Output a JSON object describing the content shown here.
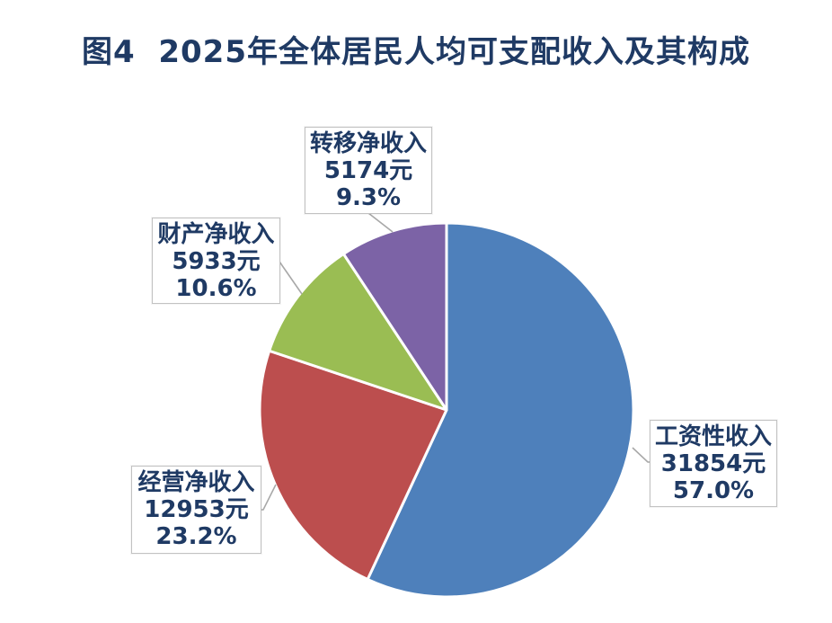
{
  "title": "图4  2025年全体居民人均可支配收入及其构成",
  "colors": {
    "background": "#FFFFFF",
    "title_text": "#1F3A64",
    "label_text": "#1F3A64",
    "callout_border": "#C2C2C2",
    "leader_line": "#A8A8A8",
    "slice_separator": "#FFFFFF"
  },
  "chart_data": {
    "type": "pie",
    "title": "图4  2025年全体居民人均可支配收入及其构成",
    "unit": "元",
    "start_angle": "12-o-clock",
    "direction": "clockwise",
    "legend_position": "none",
    "slices": [
      {
        "label": "工资性收入",
        "value": 31854,
        "value_text": "31854元",
        "percent": 57.0,
        "percent_text": "57.0%",
        "color": "#4E80BB"
      },
      {
        "label": "经营净收入",
        "value": 12953,
        "value_text": "12953元",
        "percent": 23.2,
        "percent_text": "23.2%",
        "color": "#BC4E4E"
      },
      {
        "label": "财产净收入",
        "value": 5933,
        "value_text": "5933元",
        "percent": 10.6,
        "percent_text": "10.6%",
        "color": "#9ABD53"
      },
      {
        "label": "转移净收入",
        "value": 5174,
        "value_text": "5174元",
        "percent": 9.3,
        "percent_text": "9.3%",
        "color": "#7C63A6"
      }
    ]
  }
}
